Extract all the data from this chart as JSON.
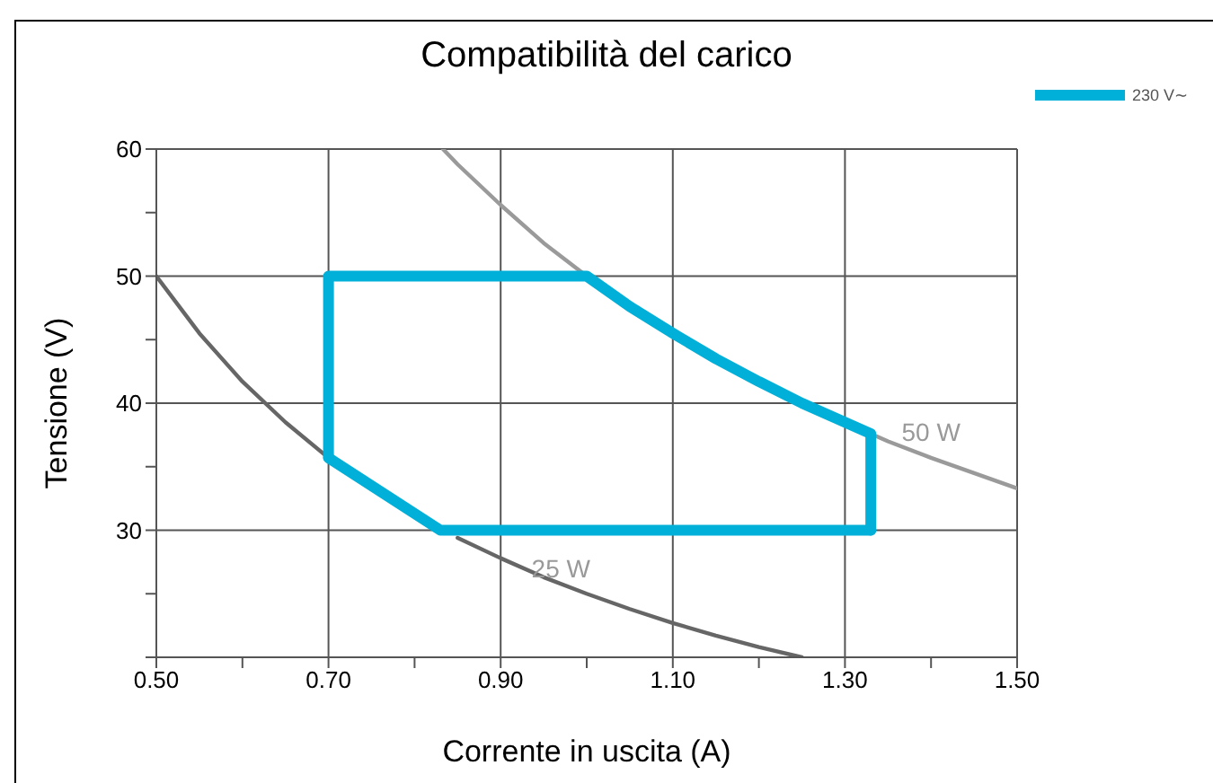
{
  "chart_data": {
    "type": "line",
    "title": "Compatibilità del carico",
    "xlabel": "Corrente in uscita (A)",
    "ylabel": "Tensione (V)",
    "xlim": [
      0.5,
      1.5
    ],
    "xticks": [
      {
        "value": 0.5,
        "label": "0.50"
      },
      {
        "value": 0.6,
        "label": null
      },
      {
        "value": 0.7,
        "label": "0.70"
      },
      {
        "value": 0.8,
        "label": null
      },
      {
        "value": 0.9,
        "label": "0.90"
      },
      {
        "value": 1.0,
        "label": null
      },
      {
        "value": 1.1,
        "label": "1.10"
      },
      {
        "value": 1.2,
        "label": null
      },
      {
        "value": 1.3,
        "label": "1.30"
      },
      {
        "value": 1.4,
        "label": null
      },
      {
        "value": 1.5,
        "label": "1.50"
      }
    ],
    "ylim": [
      20,
      60
    ],
    "yticks": [
      {
        "value": 20,
        "label": null
      },
      {
        "value": 25,
        "label": null
      },
      30,
      {
        "value": 35,
        "label": null
      },
      40,
      {
        "value": 45,
        "label": null
      },
      50,
      {
        "value": 55,
        "label": null
      },
      60
    ],
    "grid": true,
    "legend": "top right",
    "marker": "none",
    "line_style": "solid",
    "series": [
      {
        "color": "#666666",
        "x": [
          0.5,
          0.55,
          0.6,
          0.65,
          0.7,
          0.75,
          0.8,
          0.85,
          0.9,
          0.95,
          1.0,
          1.05,
          1.1,
          1.15,
          1.2,
          1.25
        ],
        "values": [
          50,
          45.5,
          41.7,
          38.5,
          35.7,
          null,
          null,
          29.4,
          27.8,
          26.3,
          25,
          23.8,
          22.7,
          21.7,
          20.8,
          20
        ]
      },
      {
        "color": "#9a9a9a",
        "x": [
          0.833,
          0.85,
          0.9,
          0.95,
          1.0,
          1.05,
          1.1,
          1.15,
          1.2,
          1.25,
          1.3,
          1.35,
          1.4,
          1.45,
          1.5
        ],
        "values": [
          60,
          58.8,
          55.6,
          52.6,
          50,
          null,
          null,
          null,
          null,
          null,
          38.5,
          37,
          35.7,
          34.5,
          33.3
        ]
      },
      {
        "name": "230 V∼",
        "color": "#00b0d8",
        "x": [
          0.7,
          0.7,
          1.0,
          1.05,
          1.1,
          1.15,
          1.2,
          1.25,
          1.3,
          1.33,
          1.33
        ],
        "values": [
          35.7,
          50,
          50,
          47.6,
          45.5,
          43.5,
          41.7,
          40,
          38.5,
          37.6,
          30
        ]
      },
      {
        "color": "#00b0d8",
        "x": [
          0.7,
          0.83,
          1.33
        ],
        "values": [
          35.7,
          30,
          30
        ]
      }
    ],
    "annotations": [
      "25 W",
      "50 W"
    ]
  }
}
